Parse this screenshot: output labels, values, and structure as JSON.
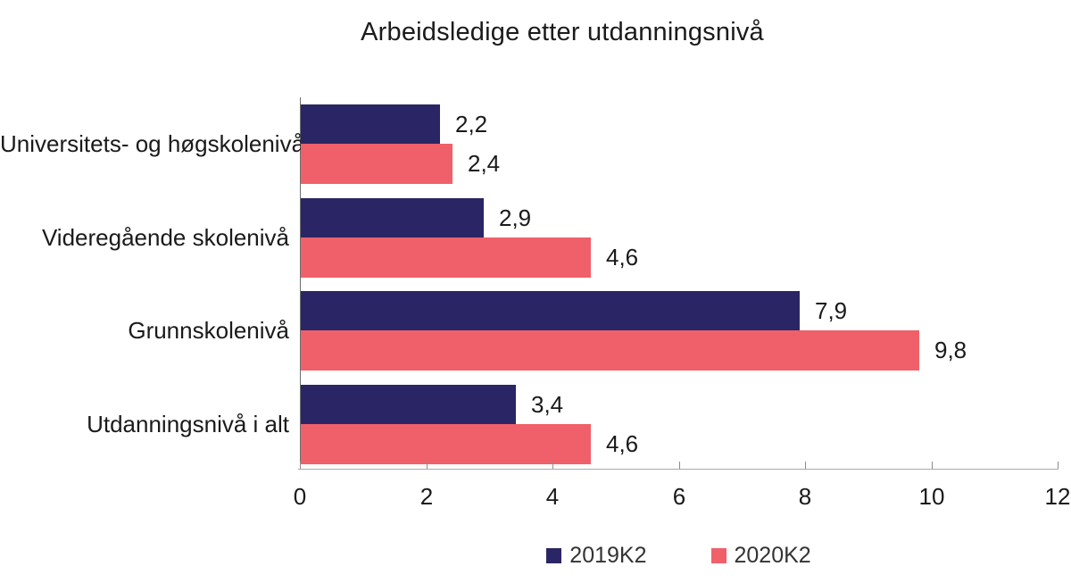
{
  "title": "Arbeidsledige etter utdanningsnivå",
  "colors": {
    "series_2019": "#2a2665",
    "series_2020": "#f0606a",
    "axis_vertical": "#6e6e6e",
    "axis_horizontal": "#a9a9a9",
    "tick": "#8c8c8c",
    "text": "#1a1a1a",
    "legend_text": "#333333"
  },
  "chart_data": {
    "type": "bar",
    "orientation": "horizontal",
    "title": "Arbeidsledige etter utdanningsnivå",
    "categories": [
      "Universitets- og høgskolenivå",
      "Videregående skolenivå",
      "Grunnskolenivå",
      "Utdanningsnivå i alt"
    ],
    "series": [
      {
        "name": "2019K2",
        "color": "#2a2665",
        "values": [
          2.2,
          2.9,
          7.9,
          3.4
        ],
        "labels": [
          "2,2",
          "2,9",
          "7,9",
          "3,4"
        ]
      },
      {
        "name": "2020K2",
        "color": "#f0606a",
        "values": [
          2.4,
          4.6,
          9.8,
          4.6
        ],
        "labels": [
          "2,4",
          "4,6",
          "9,8",
          "4,6"
        ]
      }
    ],
    "xlabel": "",
    "ylabel": "",
    "xlim": [
      0,
      12
    ],
    "x_ticks": [
      0,
      2,
      4,
      6,
      8,
      10,
      12
    ],
    "x_tick_labels": [
      "0",
      "2",
      "4",
      "6",
      "8",
      "10",
      "12"
    ],
    "grid": false,
    "legend_position": "bottom",
    "value_labels_shown": true,
    "decimal_separator": ","
  }
}
